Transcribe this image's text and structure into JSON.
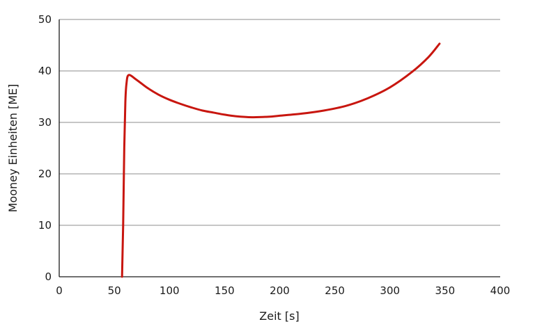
{
  "chart_data": {
    "type": "line",
    "xlabel": "Zeit [s]",
    "ylabel": "Mooney Einheiten [ME]",
    "xlim": [
      0,
      400
    ],
    "ylim": [
      0,
      50
    ],
    "x_ticks": [
      "0",
      "50",
      "100",
      "150",
      "200",
      "250",
      "300",
      "350",
      "400"
    ],
    "y_ticks": [
      "0",
      "10",
      "20",
      "30",
      "40",
      "50"
    ],
    "grid": "horizontal",
    "series": [
      {
        "color": "#c8160f",
        "x": [
          57,
          58,
          59,
          60,
          61,
          63,
          70,
          80,
          90,
          100,
          110,
          120,
          130,
          140,
          150,
          160,
          175,
          190,
          200,
          220,
          240,
          260,
          280,
          300,
          320,
          335,
          345
        ],
        "y": [
          0,
          10,
          25,
          34,
          37.5,
          39.2,
          38.3,
          36.7,
          35.4,
          34.4,
          33.6,
          32.9,
          32.3,
          31.9,
          31.5,
          31.2,
          31.0,
          31.1,
          31.3,
          31.7,
          32.3,
          33.2,
          34.7,
          36.8,
          39.8,
          42.7,
          45.3
        ]
      }
    ]
  }
}
